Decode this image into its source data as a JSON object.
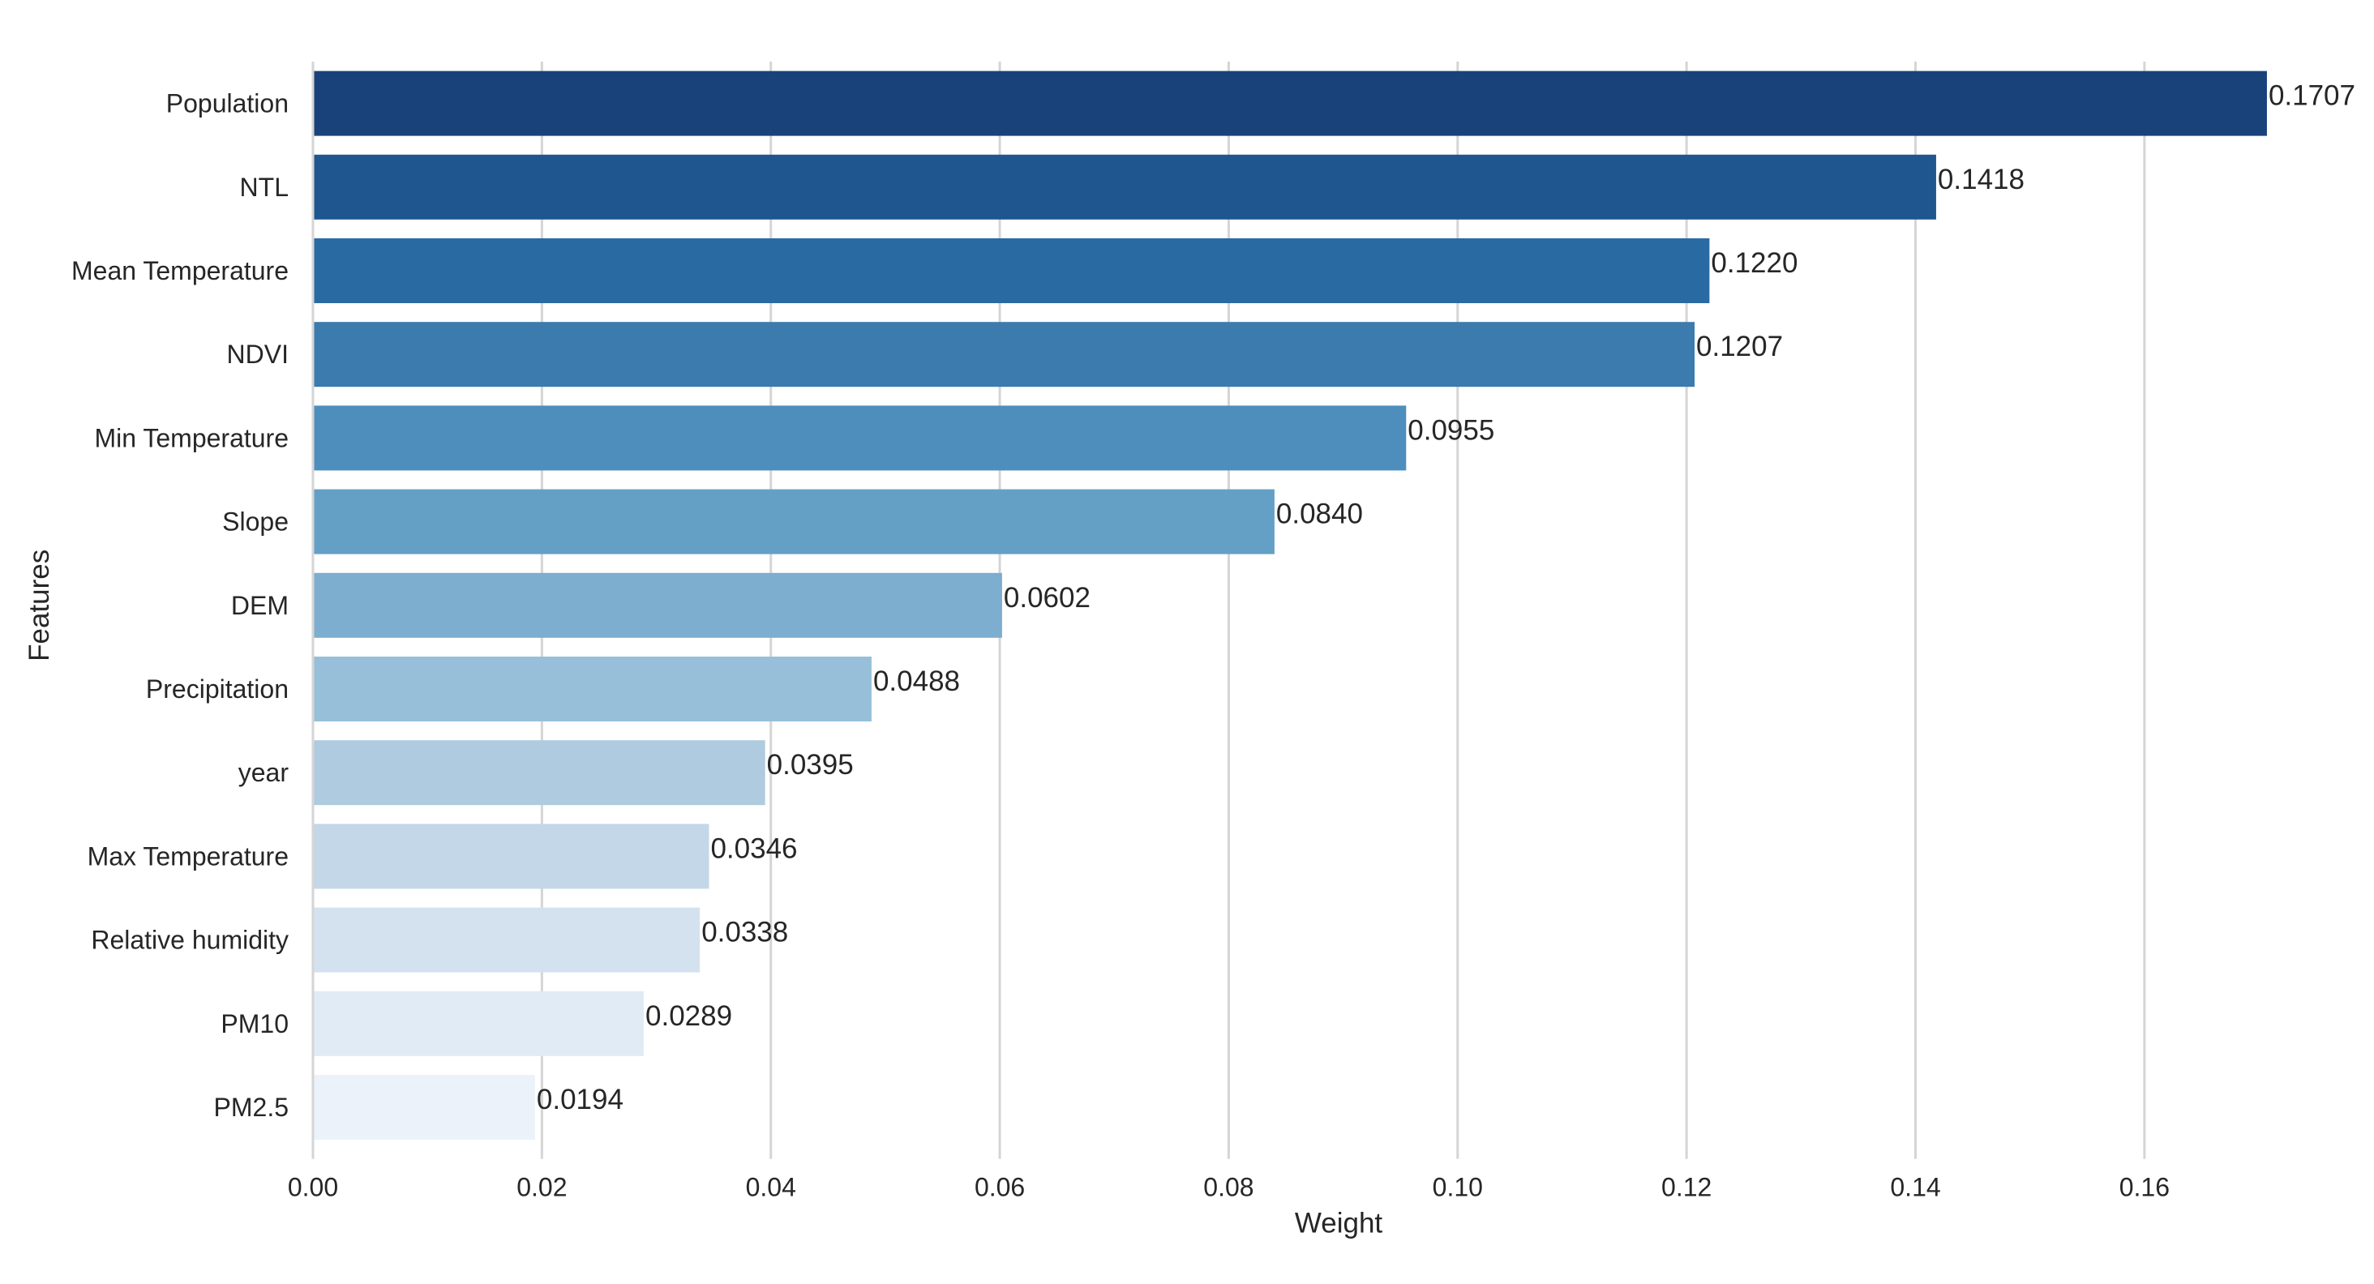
{
  "chart_data": {
    "type": "bar",
    "orientation": "horizontal",
    "categories": [
      "Population",
      "NTL",
      "Mean Temperature",
      "NDVI",
      "Min Temperature",
      "Slope",
      "DEM",
      "Precipitation",
      "year",
      "Max Temperature",
      "Relative humidity",
      "PM10",
      "PM2.5"
    ],
    "values": [
      0.1707,
      0.1418,
      0.122,
      0.1207,
      0.0955,
      0.084,
      0.0602,
      0.0488,
      0.0395,
      0.0346,
      0.0338,
      0.0289,
      0.0194
    ],
    "value_labels": [
      "0.1707",
      "0.1418",
      "0.1220",
      "0.1207",
      "0.0955",
      "0.0840",
      "0.0602",
      "0.0488",
      "0.0395",
      "0.0346",
      "0.0338",
      "0.0289",
      "0.0194"
    ],
    "bar_colors": [
      "#19427a",
      "#1f5690",
      "#2a6aa2",
      "#3b7bad",
      "#4e8ebd",
      "#64a0c6",
      "#7dadcf",
      "#98bfd9",
      "#aecbdf",
      "#c3d7e8",
      "#d4e2ef",
      "#e1ebf5",
      "#ebf2fa"
    ],
    "title": "",
    "xlabel": "Weight",
    "ylabel": "Features",
    "xlim": [
      0,
      0.175
    ],
    "xticks": [
      0.0,
      0.02,
      0.04,
      0.06,
      0.08,
      0.1,
      0.12,
      0.14,
      0.16
    ],
    "xtick_labels": [
      "0.00",
      "0.02",
      "0.04",
      "0.06",
      "0.08",
      "0.10",
      "0.12",
      "0.14",
      "0.16"
    ],
    "grid": "vertical",
    "legend": "none"
  }
}
